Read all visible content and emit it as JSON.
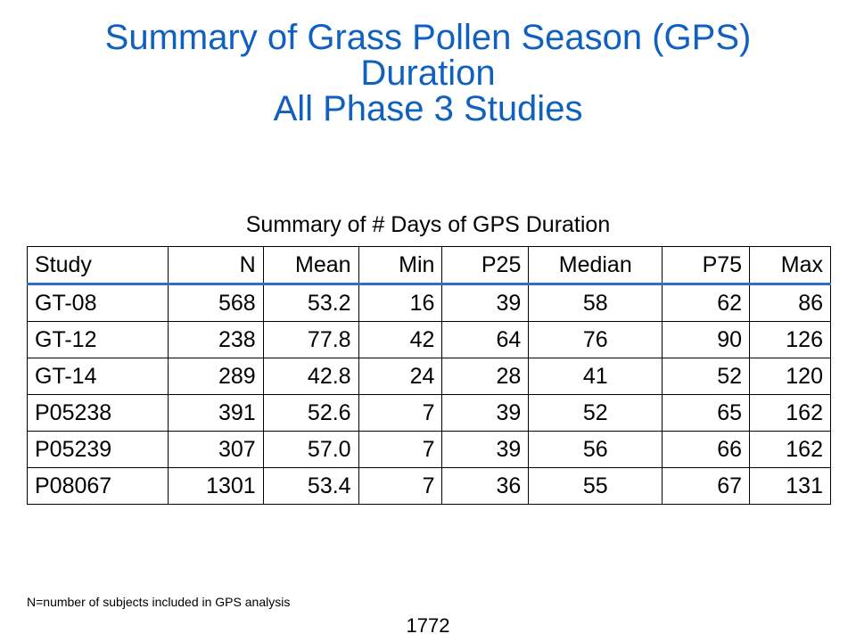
{
  "title": {
    "line1": "Summary of Grass Pollen Season (GPS)",
    "line2": "Duration",
    "line3": "All Phase 3 Studies"
  },
  "table": {
    "caption": "Summary of # Days of GPS Duration",
    "headers": [
      "Study",
      "N",
      "Mean",
      "Min",
      "P25",
      "Median",
      "P75",
      "Max"
    ],
    "rows": [
      [
        "GT-08",
        "568",
        "53.2",
        "16",
        "39",
        "58",
        "62",
        "86"
      ],
      [
        "GT-12",
        "238",
        "77.8",
        "42",
        "64",
        "76",
        "90",
        "126"
      ],
      [
        "GT-14",
        "289",
        "42.8",
        "24",
        "28",
        "41",
        "52",
        "120"
      ],
      [
        "P05238",
        "391",
        "52.6",
        "7",
        "39",
        "52",
        "65",
        "162"
      ],
      [
        "P05239",
        "307",
        "57.0",
        "7",
        "39",
        "56",
        "66",
        "162"
      ],
      [
        "P08067",
        "1301",
        "53.4",
        "7",
        "36",
        "55",
        "67",
        "131"
      ]
    ]
  },
  "footnote": "N=number of subjects included in GPS analysis",
  "page_number": "1772",
  "colors": {
    "title": "#1060c0",
    "header_rule": "#2a6fc9"
  }
}
